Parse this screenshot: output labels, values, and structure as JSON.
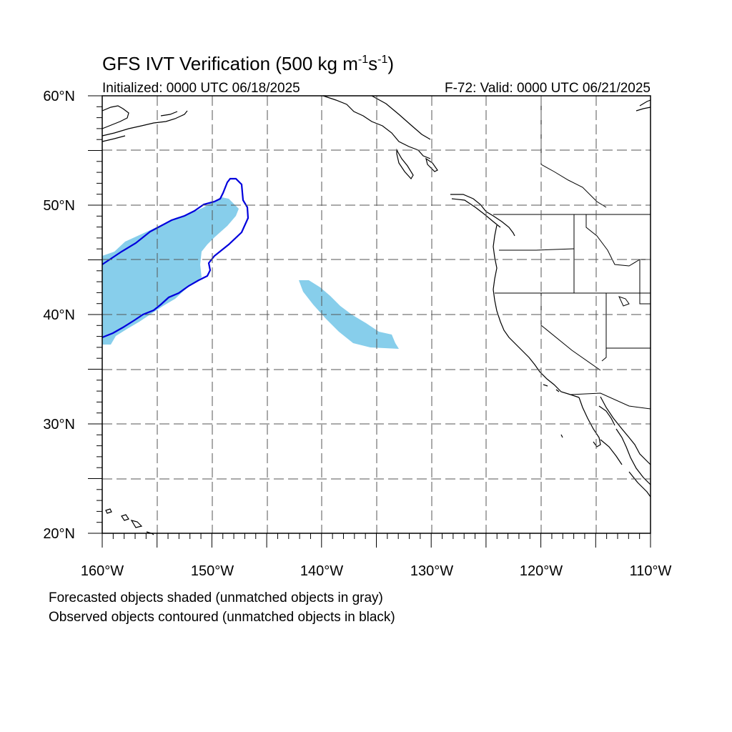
{
  "title": {
    "main": "GFS IVT Verification (500 kg m",
    "sup1": "-1",
    "mid": "s",
    "sup2": "-1",
    "end": ")"
  },
  "initialized": "Initialized: 0000 UTC 06/18/2025",
  "valid": "F-72: Valid: 0000 UTC 06/21/2025",
  "map": {
    "lon_labels": [
      "160°W",
      "150°W",
      "140°W",
      "130°W",
      "120°W",
      "110°W"
    ],
    "lat_labels": [
      "60°N",
      "50°N",
      "40°N",
      "30°N",
      "20°N"
    ],
    "lon_range": [
      -160,
      -110
    ],
    "lat_range": [
      20,
      60
    ],
    "grid_style": "dashed",
    "forecast_color": "#87ceeb",
    "observed_color": "#0000dd",
    "coast_color": "#000000"
  },
  "legend": {
    "line1": "Forecasted objects shaded (unmatched objects in gray)",
    "line2": "Observed objects contoured (unmatched objects in black)"
  }
}
